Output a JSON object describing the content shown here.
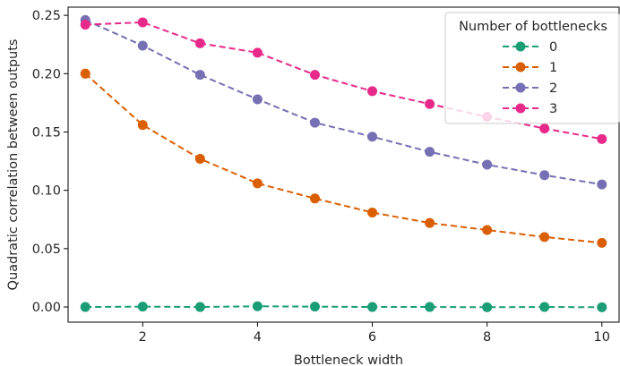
{
  "chart_data": {
    "type": "line",
    "title": "",
    "xlabel": "Bottleneck width",
    "ylabel": "Quadratic correlation between outputs",
    "xlim": [
      0.7,
      10.3
    ],
    "ylim": [
      -0.013,
      0.257
    ],
    "xticks": [
      2,
      4,
      6,
      8,
      10
    ],
    "xtick_labels": [
      "2",
      "4",
      "6",
      "8",
      "10"
    ],
    "yticks": [
      0.0,
      0.05,
      0.1,
      0.15,
      0.2,
      0.25
    ],
    "ytick_labels": [
      "0.00",
      "0.05",
      "0.10",
      "0.15",
      "0.20",
      "0.25"
    ],
    "grid": false,
    "legend": {
      "title": "Number of bottlenecks",
      "placement": "top-right"
    },
    "x": [
      1,
      2,
      3,
      4,
      5,
      6,
      7,
      8,
      9,
      10
    ],
    "series": [
      {
        "name": "0",
        "color": "#1b9e77",
        "values": [
          0.0,
          0.0003,
          0.0,
          0.0006,
          0.0003,
          0.0,
          0.0,
          -0.0002,
          0.0,
          -0.0002
        ]
      },
      {
        "name": "1",
        "color": "#d95f02",
        "values": [
          0.2,
          0.156,
          0.127,
          0.106,
          0.093,
          0.081,
          0.072,
          0.066,
          0.06,
          0.055
        ]
      },
      {
        "name": "2",
        "color": "#7570b3",
        "values": [
          0.246,
          0.224,
          0.199,
          0.178,
          0.158,
          0.146,
          0.133,
          0.122,
          0.113,
          0.105
        ]
      },
      {
        "name": "3",
        "color": "#e7298a",
        "values": [
          0.242,
          0.244,
          0.226,
          0.218,
          0.199,
          0.185,
          0.174,
          0.163,
          0.153,
          0.144
        ]
      }
    ]
  }
}
